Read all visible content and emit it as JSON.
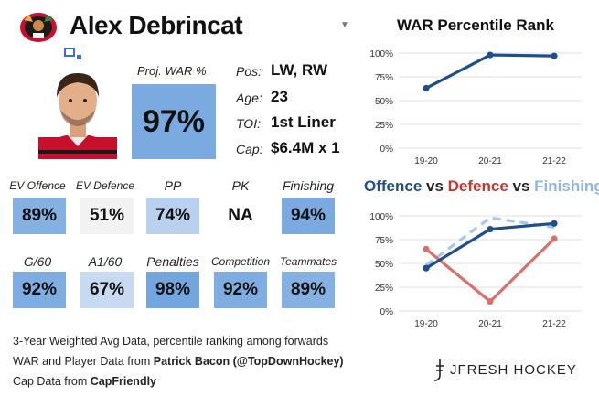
{
  "player": {
    "name": "Alex Debrincat",
    "team_logo": "blackhawks-logo",
    "headshot": "player-headshot"
  },
  "war": {
    "label": "Proj. WAR %",
    "value": "97%",
    "color": "#7aaae0"
  },
  "info": [
    {
      "key": "Pos:",
      "value": "LW, RW"
    },
    {
      "key": "Age:",
      "value": "23"
    },
    {
      "key": "TOI:",
      "value": "1st Liner"
    },
    {
      "key": "Cap:",
      "value": "$6.4M x 1"
    }
  ],
  "stats_row1": [
    {
      "label": "EV Offence",
      "value": "89%",
      "color": "#84b1e2"
    },
    {
      "label": "EV Defence",
      "value": "51%",
      "color": "#f2f2f2"
    },
    {
      "label": "PP",
      "value": "74%",
      "color": "#b9d1ee"
    },
    {
      "label": "PK",
      "value": "NA",
      "color": "#ffffff"
    },
    {
      "label": "Finishing",
      "value": "94%",
      "color": "#7aaae0"
    }
  ],
  "stats_row2": [
    {
      "label": "G/60",
      "value": "92%",
      "color": "#7fade1"
    },
    {
      "label": "A1/60",
      "value": "67%",
      "color": "#c7daf1"
    },
    {
      "label": "Penalties",
      "value": "98%",
      "color": "#73a5de"
    },
    {
      "label": "Competition",
      "value": "92%",
      "color": "#7fade1"
    },
    {
      "label": "Teammates",
      "value": "89%",
      "color": "#84b1e2"
    }
  ],
  "footer": {
    "line1": "3-Year Weighted Avg Data, percentile ranking among forwards",
    "line2_prefix": "WAR and Player Data from ",
    "line2_bold": "Patrick Bacon (@TopDownHockey)",
    "line3_prefix": "Cap Data from ",
    "line3_bold": "CapFriendly"
  },
  "brand": "JFRESH HOCKEY",
  "chart_data": [
    {
      "type": "line",
      "title": "WAR Percentile Rank",
      "categories": [
        "19-20",
        "20-21",
        "21-22"
      ],
      "yticks": [
        "0%",
        "25%",
        "50%",
        "75%",
        "100%"
      ],
      "ylim": [
        0,
        100
      ],
      "grid": true,
      "series": [
        {
          "values": [
            63,
            98,
            97
          ],
          "color": "#1f4e8c",
          "dashed": false
        }
      ]
    },
    {
      "type": "line",
      "title_parts": [
        {
          "text": "Offence",
          "color": "#1f4e8c"
        },
        {
          "text": " vs ",
          "color": "#222222"
        },
        {
          "text": "Defence",
          "color": "#c9352b"
        },
        {
          "text": " vs ",
          "color": "#222222"
        },
        {
          "text": "Finishing",
          "color": "#8fb5e2"
        }
      ],
      "categories": [
        "19-20",
        "20-21",
        "21-22"
      ],
      "yticks": [
        "0%",
        "25%",
        "50%",
        "75%",
        "100%"
      ],
      "ylim": [
        0,
        100
      ],
      "grid": true,
      "series": [
        {
          "name": "Finishing",
          "values": [
            48,
            98,
            88
          ],
          "color": "#a9c6ea",
          "dashed": true
        },
        {
          "name": "Defence",
          "values": [
            65,
            10,
            76
          ],
          "color": "#d9706b",
          "dashed": false
        },
        {
          "name": "Offence",
          "values": [
            45,
            86,
            92
          ],
          "color": "#1f4e8c",
          "dashed": false
        }
      ]
    }
  ]
}
